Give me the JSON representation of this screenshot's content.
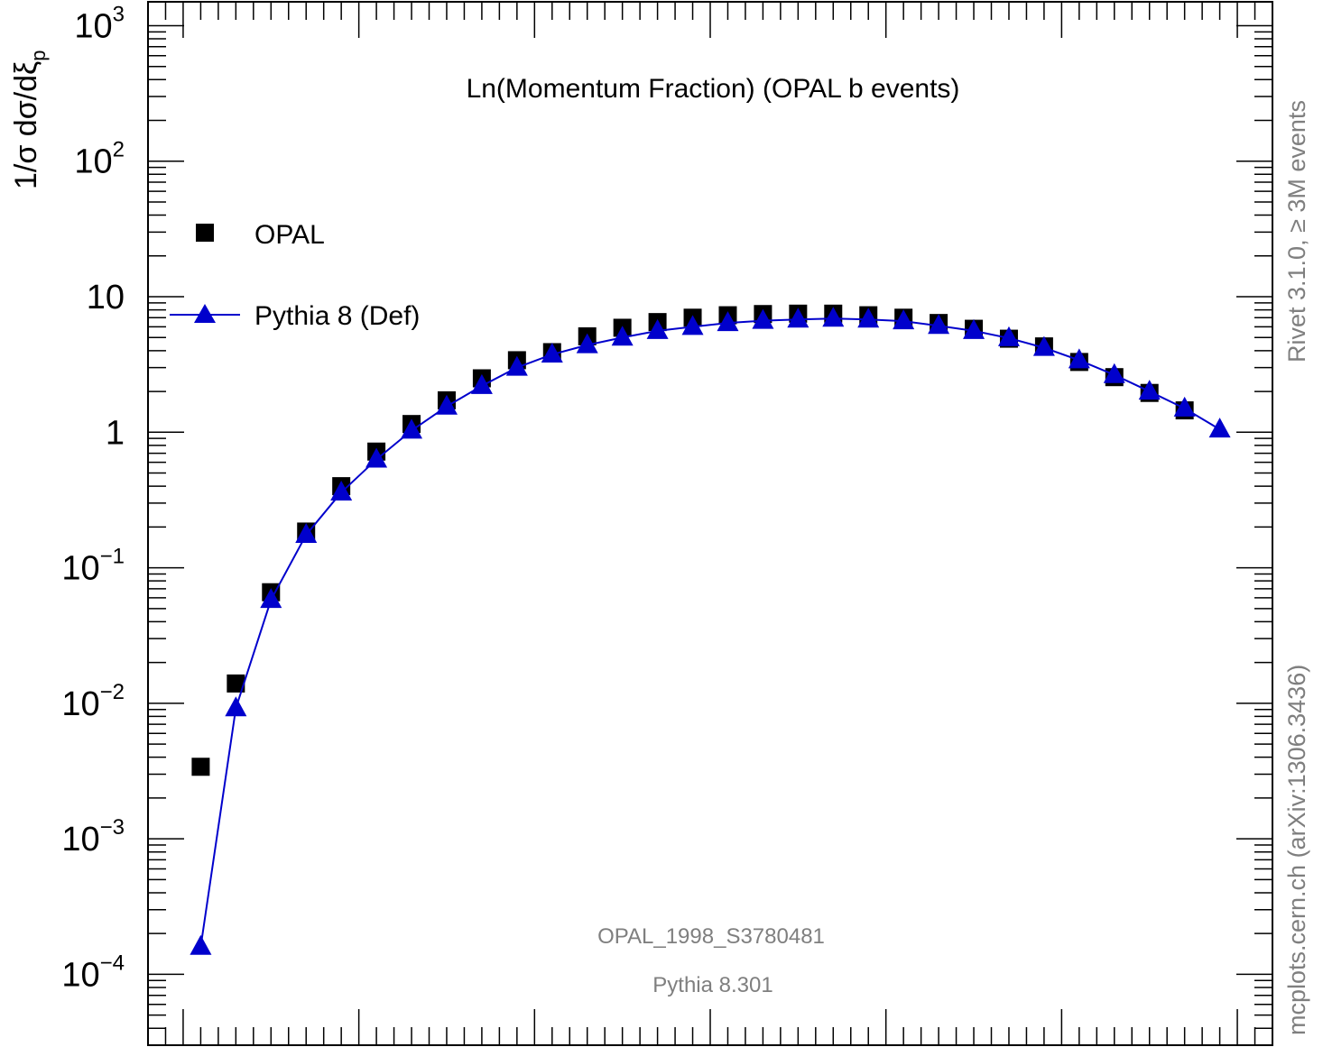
{
  "chart_data": {
    "type": "scatter",
    "title": "Ln(Momentum Fraction) (OPAL b events)",
    "ylabel": "1/σ dσ/dξ",
    "ylabel_sub": "p",
    "xlabel": "",
    "yscale": "log",
    "xlim": [
      -0.2,
      6.2
    ],
    "ylim": [
      3e-05,
      1500
    ],
    "x": [
      0.1,
      0.3,
      0.5,
      0.7,
      0.9,
      1.1,
      1.3,
      1.5,
      1.7,
      1.9,
      2.1,
      2.3,
      2.5,
      2.7,
      2.9,
      3.1,
      3.3,
      3.5,
      3.7,
      3.9,
      4.1,
      4.3,
      4.5,
      4.7,
      4.9,
      5.1,
      5.3,
      5.5,
      5.7,
      5.9
    ],
    "series": [
      {
        "name": "OPAL",
        "marker": "square",
        "color": "#000000",
        "values": [
          0.0034,
          0.014,
          0.066,
          0.185,
          0.4,
          0.72,
          1.15,
          1.72,
          2.5,
          3.4,
          3.9,
          5.1,
          5.9,
          6.5,
          7.0,
          7.3,
          7.45,
          7.5,
          7.5,
          7.3,
          7.0,
          6.4,
          5.8,
          4.9,
          4.3,
          3.3,
          2.55,
          1.95,
          1.45,
          null
        ]
      },
      {
        "name": "Pythia 8 (Def)",
        "marker": "triangle",
        "color": "#0000cc",
        "line": true,
        "values": [
          0.00016,
          0.0092,
          0.058,
          0.175,
          0.36,
          0.63,
          1.03,
          1.55,
          2.2,
          3.0,
          3.75,
          4.4,
          5.0,
          5.6,
          6.0,
          6.4,
          6.65,
          6.8,
          6.9,
          6.8,
          6.6,
          6.1,
          5.6,
          4.95,
          4.2,
          3.4,
          2.65,
          2.0,
          1.5,
          1.05
        ]
      }
    ],
    "yticks": [
      {
        "base": "10",
        "exp": "3",
        "value": 1000
      },
      {
        "base": "10",
        "exp": "2",
        "value": 100
      },
      {
        "base": "10",
        "exp": "",
        "value": 10
      },
      {
        "base": "1",
        "exp": "",
        "value": 1
      },
      {
        "base": "10",
        "exp": "−1",
        "value": 0.1
      },
      {
        "base": "10",
        "exp": "−2",
        "value": 0.01
      },
      {
        "base": "10",
        "exp": "−3",
        "value": 0.001
      },
      {
        "base": "10",
        "exp": "−4",
        "value": 0.0001
      }
    ],
    "legend": {
      "placement": "top-left",
      "entries": [
        "OPAL",
        "Pythia 8 (Def)"
      ]
    },
    "annotations": {
      "analysis_id": "OPAL_1998_S3780481",
      "generator": "Pythia 8.301",
      "right_top": "Rivet 3.1.0, ≥ 3M events",
      "right_bottom": "mcplots.cern.ch (arXiv:1306.3436)"
    },
    "colors": {
      "data": "#000000",
      "mc": "#0000cc",
      "annotation": "#7f7f7f"
    }
  }
}
